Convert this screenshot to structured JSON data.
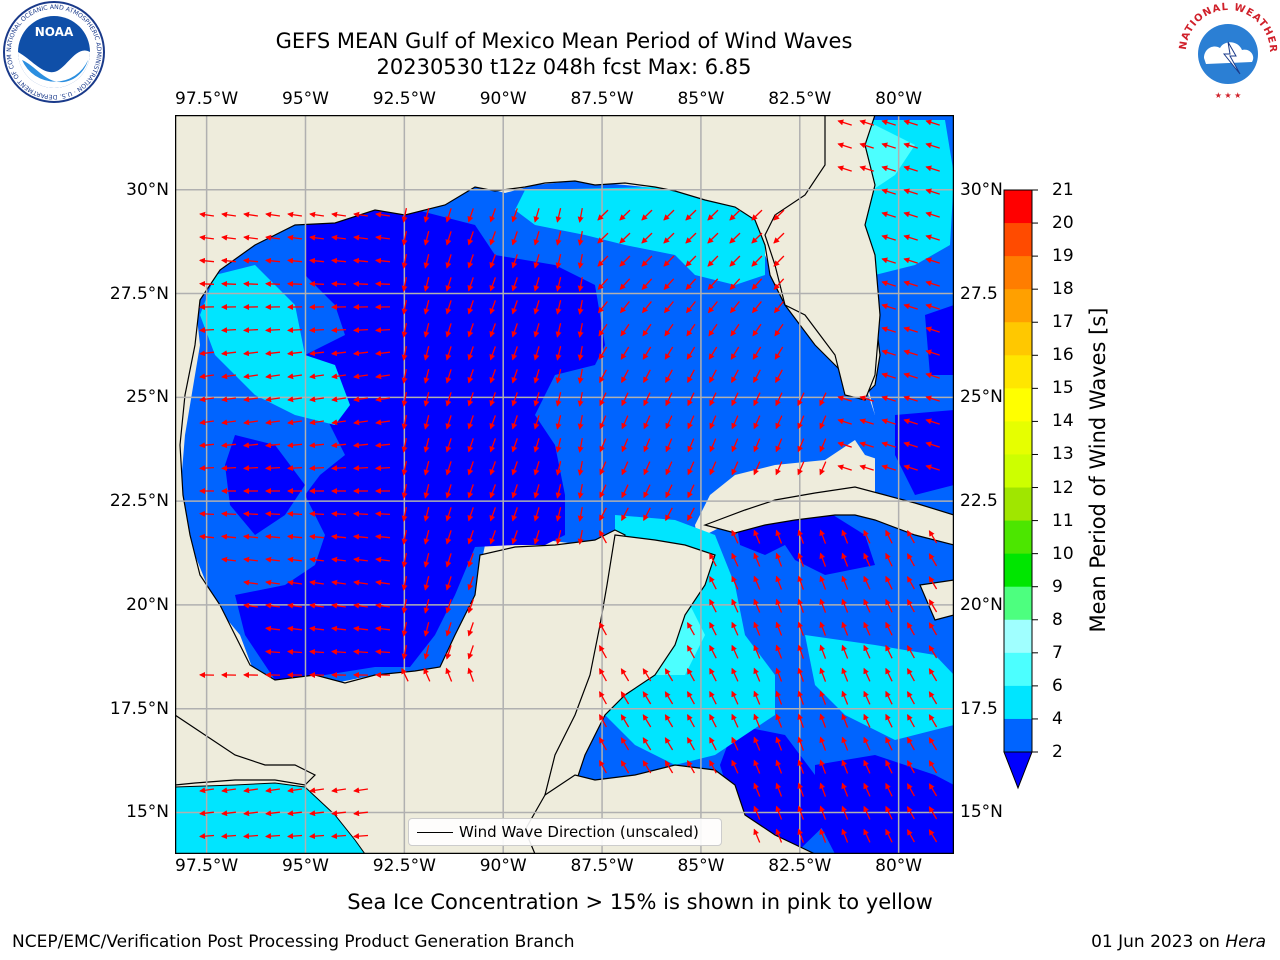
{
  "header": {
    "title_line1": "GEFS MEAN Gulf of Mexico Mean Period of Wind Waves",
    "title_line2": "20230530 t12z 048h fcst   Max: 6.85"
  },
  "logos": {
    "noaa_text": "NOAA",
    "noaa_ring_text": "NATIONAL OCEANIC AND ATMOSPHERIC ADMINISTRATION · U.S. DEPARTMENT OF COMMERCE",
    "nws_ring_text": "NATIONAL WEATHER SERVICE"
  },
  "map": {
    "lon_range": [
      -98.3,
      -78.6
    ],
    "lat_range": [
      14.0,
      31.8
    ],
    "lon_ticks": [
      "97.5°W",
      "95°W",
      "92.5°W",
      "90°W",
      "87.5°W",
      "85°W",
      "82.5°W",
      "80°W"
    ],
    "lat_ticks_left": [
      "30°N",
      "27.5°N",
      "25°N",
      "22.5°N",
      "20°N",
      "17.5°N",
      "15°N"
    ],
    "lat_ticks_right": [
      "30°N",
      "27.5",
      "25°N",
      "22.5",
      "20°N",
      "17.5",
      "15°N"
    ],
    "legend_label": "Wind Wave Direction (unscaled)",
    "land_color": "#eeecdc",
    "arrow_color": "#ff0000"
  },
  "colorbar": {
    "label": "Mean Period of Wind Waves [s]",
    "ticks": [
      "2",
      "4",
      "6",
      "7",
      "8",
      "9",
      "10",
      "11",
      "12",
      "13",
      "14",
      "15",
      "16",
      "17",
      "18",
      "19",
      "20",
      "21"
    ],
    "colors": [
      "#0064ff",
      "#00e5ff",
      "#4cffff",
      "#a0ffff",
      "#4dff7f",
      "#00e600",
      "#4ce600",
      "#a0e600",
      "#cdff00",
      "#e6ff00",
      "#ffff00",
      "#ffe600",
      "#ffc800",
      "#ffa000",
      "#ff7d00",
      "#ff4b00",
      "#ff0000"
    ],
    "under_color": "#0000ff"
  },
  "legend_note": "Sea Ice Concentration > 15% is shown in pink to yellow",
  "footer": {
    "left": "NCEP/EMC/Verification Post Processing Product Generation Branch",
    "right_date": "01 Jun 2023 on",
    "right_host": "Hera"
  }
}
